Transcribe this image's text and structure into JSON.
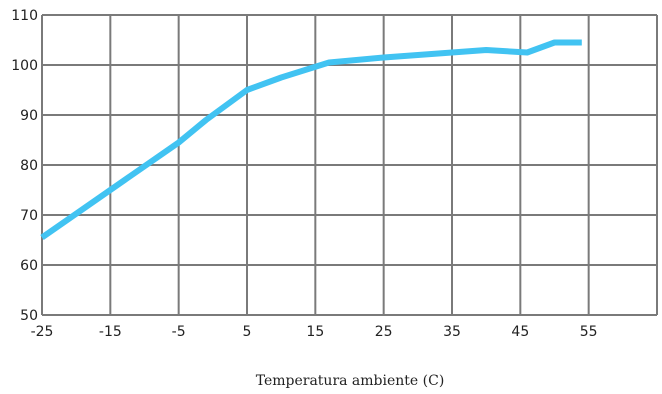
{
  "chart_data": {
    "type": "line",
    "title": "",
    "xlabel": "Temperatura ambiente (C)",
    "ylabel": "",
    "xlim": [
      -25,
      65
    ],
    "ylim": [
      50,
      110
    ],
    "xticks": [
      -25,
      -15,
      -5,
      5,
      15,
      25,
      35,
      45,
      55
    ],
    "yticks": [
      50,
      60,
      70,
      80,
      90,
      100,
      110
    ],
    "grid": true,
    "legend": "none",
    "series": [
      {
        "color": "#41C3F2",
        "x": [
          -25,
          -15,
          -5,
          -1,
          5,
          10,
          17,
          25,
          35,
          40,
          46,
          50,
          54
        ],
        "y": [
          65.5,
          75,
          84.5,
          89,
          95,
          97.5,
          100.5,
          101.5,
          102.5,
          103,
          102.5,
          104.5,
          104.5
        ]
      }
    ]
  }
}
